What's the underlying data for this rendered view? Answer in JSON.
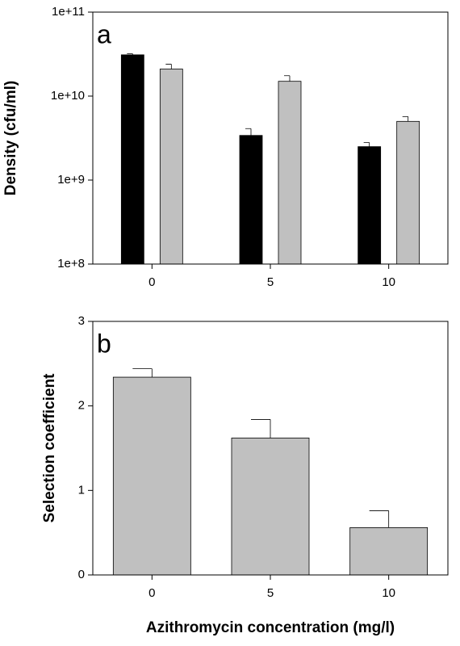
{
  "chart_data": [
    {
      "type": "bar",
      "panel_label": "a",
      "y_label": "Density (cfu/ml)",
      "log_y": true,
      "categories": [
        "0",
        "5",
        "10"
      ],
      "series": [
        {
          "color": "#000000",
          "values": [
            31000000000,
            3400000000,
            2500000000
          ],
          "errors": [
            1000000000,
            700000000,
            300000000
          ]
        },
        {
          "color": "#c0c0c0",
          "values": [
            21000000000,
            15000000000,
            5000000000
          ],
          "errors": [
            3000000000,
            2500000000,
            700000000
          ]
        }
      ],
      "ylim": [
        100000000,
        100000000000
      ],
      "yticks": [
        {
          "value": 100000000,
          "label": "1e+8"
        },
        {
          "value": 1000000000,
          "label": "1e+9"
        },
        {
          "value": 10000000000,
          "label": "1e+10"
        },
        {
          "value": 100000000000,
          "label": "1e+11"
        }
      ]
    },
    {
      "type": "bar",
      "panel_label": "b",
      "y_label": "Selection coefficient",
      "x_label": "Azithromycin concentration (mg/l)",
      "categories": [
        "0",
        "5",
        "10"
      ],
      "series": [
        {
          "color": "#c0c0c0",
          "values": [
            2.34,
            1.62,
            0.56
          ],
          "errors": [
            0.1,
            0.22,
            0.2
          ]
        }
      ],
      "ylim": [
        0,
        3
      ],
      "yticks": [
        0,
        1,
        2,
        3
      ]
    }
  ]
}
